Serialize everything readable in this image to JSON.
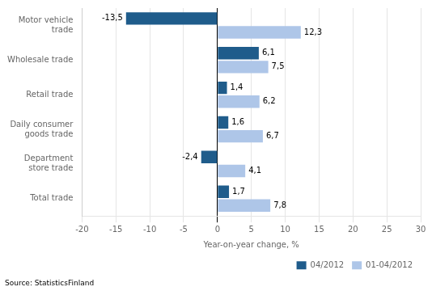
{
  "chart_data": {
    "type": "bar",
    "orientation": "horizontal",
    "categories": [
      "Motor vehicle\ntrade",
      "Wholesale trade",
      "Retail trade",
      "Daily consumer\ngoods trade",
      "Department\nstore trade",
      "Total trade"
    ],
    "series": [
      {
        "name": "04/2012",
        "color": "#1f5c8b",
        "values": [
          -13.5,
          6.1,
          1.4,
          1.6,
          -2.4,
          1.7
        ],
        "value_labels": [
          "-13,5",
          "6,1",
          "1,4",
          "1,6",
          "-2,4",
          "1,7"
        ]
      },
      {
        "name": "01-04/2012",
        "color": "#aec6e8",
        "values": [
          12.3,
          7.5,
          6.2,
          6.7,
          4.1,
          7.8
        ],
        "value_labels": [
          "12,3",
          "7,5",
          "6,2",
          "6,7",
          "4,1",
          "7,8"
        ]
      }
    ],
    "xlabel": "Year-on-year change, %",
    "xlim": [
      -20,
      30
    ],
    "xticks": [
      -20,
      -15,
      -10,
      -5,
      0,
      5,
      10,
      15,
      20,
      25,
      30
    ],
    "grid": "x",
    "legend": "lower right",
    "data_labels": true,
    "source": "Source: StatisticsFinland"
  }
}
